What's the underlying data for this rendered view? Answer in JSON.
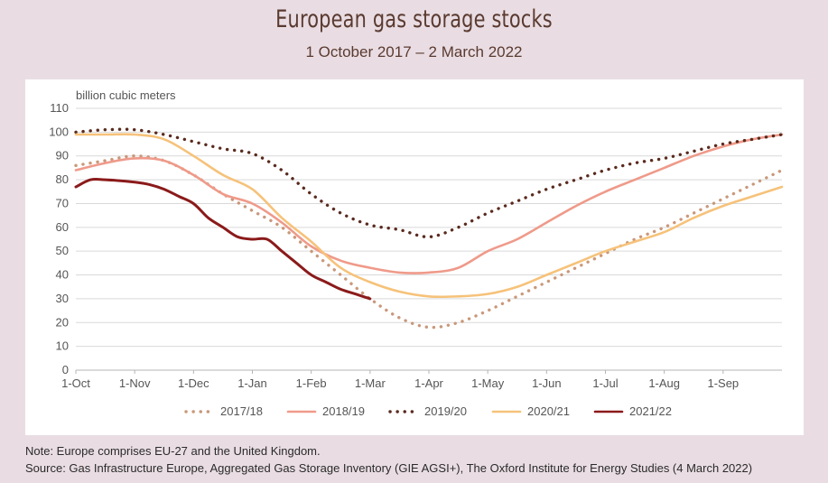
{
  "header": {
    "title": "European gas storage stocks",
    "subtitle": "1 October 2017 – 2 March 2022"
  },
  "footer": {
    "note": "Note:  Europe comprises EU-27 and the United Kingdom.",
    "source": "Source:  Gas Infrastructure Europe, Aggregated Gas Storage Inventory (GIE AGSI+), The Oxford Institute for Energy Studies (4 March 2022)"
  },
  "chart_data": {
    "type": "line",
    "title": "European gas storage stocks",
    "subtitle": "1 October 2017 – 2 March 2022",
    "ylabel": "billion cubic meters",
    "ylim": [
      0,
      110
    ],
    "yticks": [
      0,
      10,
      20,
      30,
      40,
      50,
      60,
      70,
      80,
      90,
      100,
      110
    ],
    "x_unit": "month of gas year (Oct = 0, Sep 30 = 12)",
    "xticks": [
      {
        "label": "1-Oct",
        "x": 0
      },
      {
        "label": "1-Nov",
        "x": 1
      },
      {
        "label": "1-Dec",
        "x": 2
      },
      {
        "label": "1-Jan",
        "x": 3
      },
      {
        "label": "1-Feb",
        "x": 4
      },
      {
        "label": "1-Mar",
        "x": 5
      },
      {
        "label": "1-Apr",
        "x": 6
      },
      {
        "label": "1-May",
        "x": 7
      },
      {
        "label": "1-Jun",
        "x": 8
      },
      {
        "label": "1-Jul",
        "x": 9
      },
      {
        "label": "1-Aug",
        "x": 10
      },
      {
        "label": "1-Sep",
        "x": 11
      }
    ],
    "xlim": [
      0,
      12
    ],
    "grid": true,
    "legend_position": "bottom",
    "series": [
      {
        "name": "2017/18",
        "color": "#c9987a",
        "style": "dotted",
        "x": [
          0,
          0.5,
          1,
          1.5,
          2,
          2.5,
          3,
          3.5,
          4,
          4.5,
          5,
          5.5,
          6,
          6.5,
          7,
          7.5,
          8,
          8.5,
          9,
          9.5,
          10,
          10.5,
          11,
          11.5,
          12
        ],
        "y": [
          86,
          88,
          90,
          88,
          82,
          74,
          67,
          60,
          50,
          40,
          30,
          22,
          18,
          20,
          25,
          31,
          37,
          43,
          49,
          55,
          60,
          66,
          72,
          78,
          84
        ]
      },
      {
        "name": "2018/19",
        "color": "#ef9a8a",
        "style": "solid",
        "x": [
          0,
          0.5,
          1,
          1.5,
          2,
          2.5,
          3,
          3.5,
          4,
          4.5,
          5,
          5.5,
          6,
          6.5,
          7,
          7.5,
          8,
          8.5,
          9,
          9.5,
          10,
          10.5,
          11,
          11.5,
          12
        ],
        "y": [
          84,
          87,
          89,
          88,
          82,
          74,
          70,
          62,
          52,
          46,
          43,
          41,
          41,
          43,
          50,
          55,
          62,
          69,
          75,
          80,
          85,
          90,
          94,
          97,
          99
        ]
      },
      {
        "name": "2019/20",
        "color": "#5a2a1e",
        "style": "dotted",
        "x": [
          0,
          0.5,
          1,
          1.5,
          2,
          2.5,
          3,
          3.5,
          4,
          4.5,
          5,
          5.5,
          6,
          6.5,
          7,
          7.5,
          8,
          8.5,
          9,
          9.5,
          10,
          10.5,
          11,
          11.5,
          12
        ],
        "y": [
          100,
          101,
          101,
          99,
          96,
          93,
          91,
          84,
          74,
          66,
          61,
          59,
          56,
          60,
          66,
          71,
          76,
          80,
          84,
          87,
          89,
          92,
          95,
          97,
          99
        ]
      },
      {
        "name": "2020/21",
        "color": "#f6c27a",
        "style": "solid",
        "x": [
          0,
          0.5,
          1,
          1.5,
          2,
          2.5,
          3,
          3.5,
          4,
          4.5,
          5,
          5.5,
          6,
          6.5,
          7,
          7.5,
          8,
          8.5,
          9,
          9.5,
          10,
          10.5,
          11,
          11.5,
          12
        ],
        "y": [
          99,
          99,
          99,
          97,
          90,
          82,
          76,
          64,
          54,
          43,
          37,
          33,
          31,
          31,
          32,
          35,
          40,
          45,
          50,
          54,
          58,
          64,
          69,
          73,
          77
        ]
      },
      {
        "name": "2021/22",
        "color": "#8b1a1a",
        "style": "solid",
        "x": [
          0,
          0.25,
          0.5,
          1,
          1.25,
          1.5,
          1.75,
          2,
          2.25,
          2.5,
          2.75,
          3,
          3.25,
          3.5,
          3.75,
          4,
          4.25,
          4.5,
          4.75,
          5
        ],
        "y": [
          77,
          80,
          80,
          79,
          78,
          76,
          73,
          70,
          64,
          60,
          56,
          55,
          55,
          50,
          45,
          40,
          37,
          34,
          32,
          30
        ]
      }
    ]
  }
}
